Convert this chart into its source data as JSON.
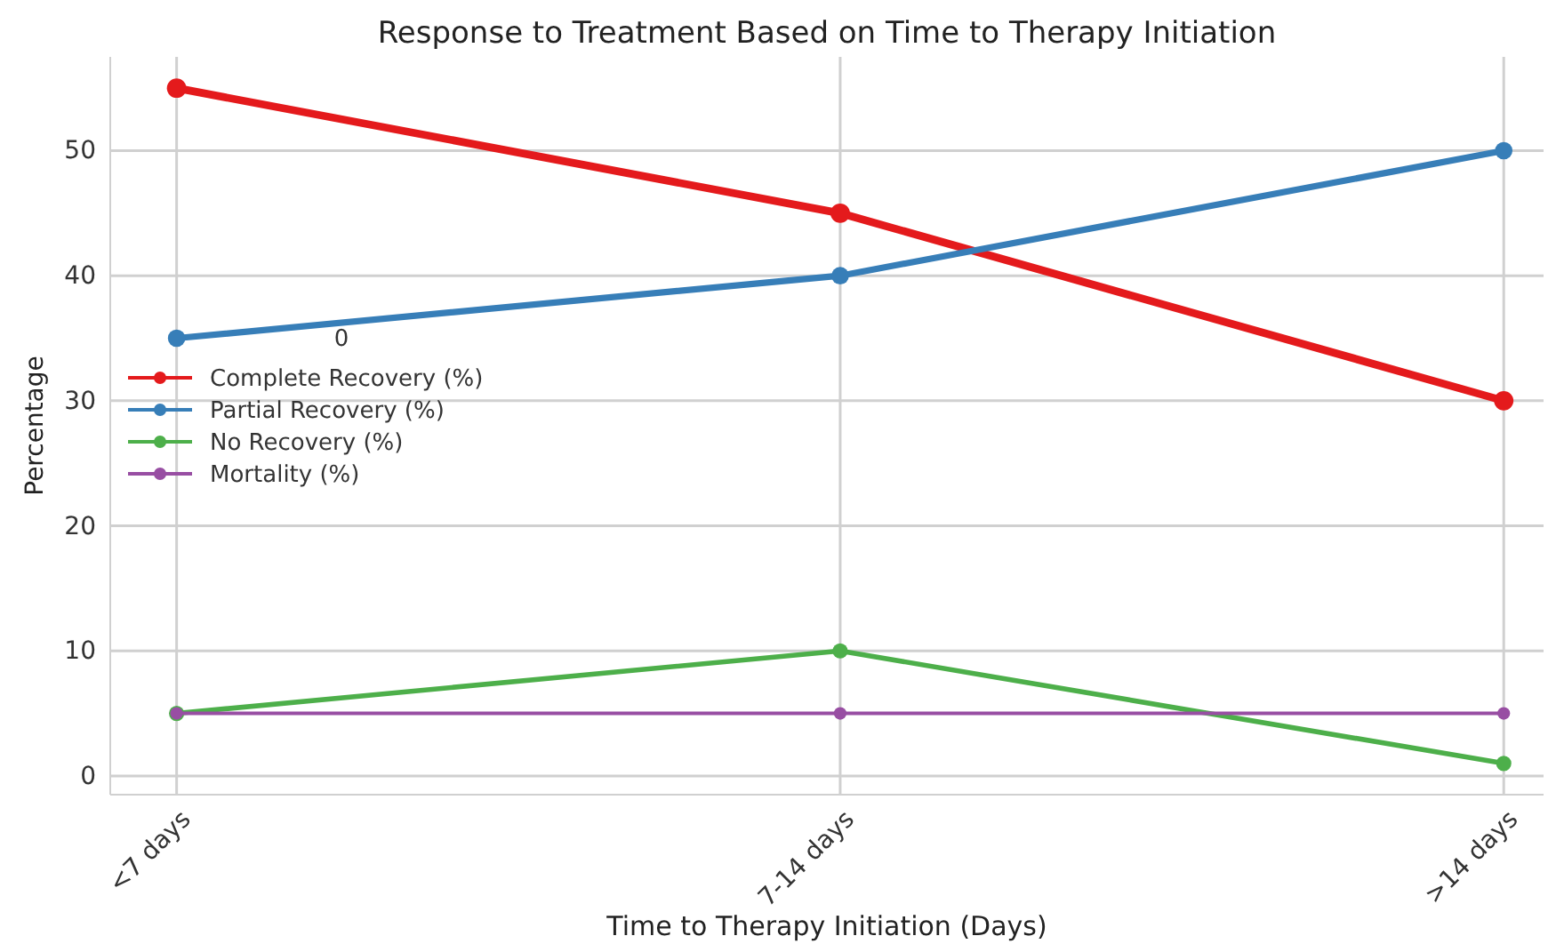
{
  "chart_data": {
    "type": "line",
    "title": "Response to Treatment Based on Time to Therapy Initiation",
    "xlabel": "Time to Therapy Initiation (Days)",
    "ylabel": "Percentage",
    "legend_title": "0",
    "categories": [
      "<7 days",
      "7-14 days",
      ">14 days"
    ],
    "series": [
      {
        "name": "Complete Recovery (%)",
        "color": "#e41a1c",
        "values": [
          55,
          45,
          30
        ]
      },
      {
        "name": "Partial Recovery (%)",
        "color": "#377eb8",
        "values": [
          35,
          40,
          50
        ]
      },
      {
        "name": "No Recovery (%)",
        "color": "#4daf4a",
        "values": [
          5,
          10,
          1
        ]
      },
      {
        "name": "Mortality (%)",
        "color": "#984ea3",
        "values": [
          5,
          5,
          5
        ]
      }
    ],
    "ylim": [
      -1.5,
      57.5
    ],
    "yticks": [
      0,
      10,
      20,
      30,
      40,
      50
    ],
    "grid": true,
    "legend": "center left",
    "marker": "circle",
    "line_style": "solid"
  }
}
